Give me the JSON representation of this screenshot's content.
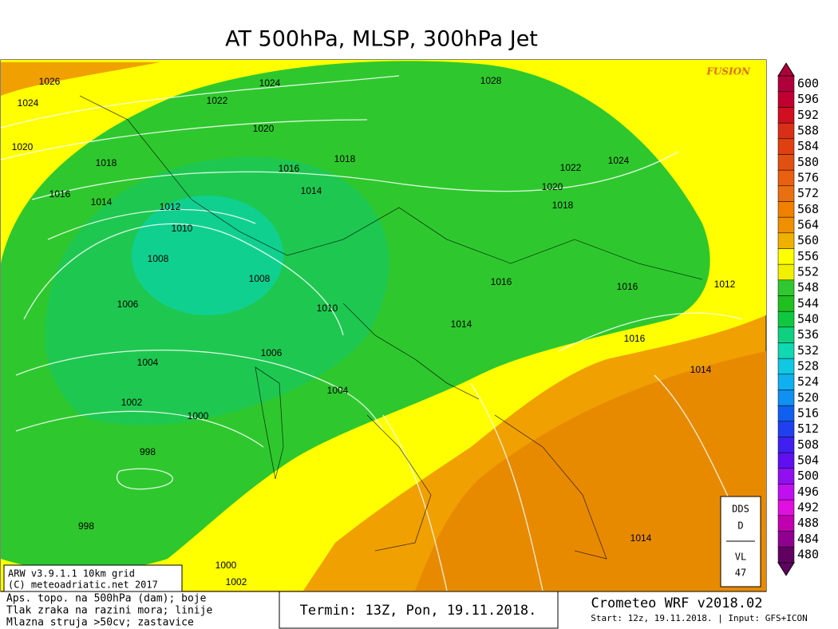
{
  "title": "AT 500hPa, MLSP, 300hPa Jet",
  "brand": "FUSION",
  "colorbar": {
    "levels": [
      600,
      596,
      592,
      588,
      584,
      580,
      576,
      572,
      568,
      564,
      560,
      556,
      552,
      548,
      544,
      540,
      536,
      532,
      528,
      524,
      520,
      516,
      512,
      508,
      504,
      500,
      496,
      492,
      488,
      484,
      480
    ],
    "colors": [
      "#b0003c",
      "#c00030",
      "#d01020",
      "#d83018",
      "#e04010",
      "#e05010",
      "#e86010",
      "#e87010",
      "#f08000",
      "#f09000",
      "#f0b000",
      "#ffff00",
      "#f0f000",
      "#30c830",
      "#20c020",
      "#10c840",
      "#10d080",
      "#10d8b0",
      "#10c8e0",
      "#10b0f0",
      "#1090f0",
      "#1060f0",
      "#2040f0",
      "#4020f0",
      "#6010f0",
      "#9010f0",
      "#c010f0",
      "#e010e0",
      "#c000b0",
      "#900090",
      "#600060"
    ]
  },
  "isobars": [
    "1026",
    "1024",
    "1020",
    "1016",
    "1018",
    "1014",
    "1012",
    "1010",
    "1008",
    "1006",
    "1004",
    "1002",
    "1000",
    "998",
    "998",
    "1000",
    "1002",
    "1022",
    "1024",
    "1020",
    "1016",
    "1018",
    "1014",
    "1008",
    "1010",
    "1006",
    "1004",
    "1028",
    "1022",
    "1024",
    "1020",
    "1018",
    "1016",
    "1016",
    "1014",
    "1016",
    "1012",
    "1014",
    "1014"
  ],
  "model_box": [
    "ARW v3.9.1.1 10km grid",
    "(C) meteoadriatic.net 2017"
  ],
  "station_box": {
    "top": [
      "DDS",
      "D"
    ],
    "bottom": [
      "VL",
      "47"
    ]
  },
  "legend_text": [
    "Aps. topo. na 500hPa (dam); boje",
    "Tlak zraka na razini mora; linije",
    "Mlazna struja >50cv; zastavice"
  ],
  "termin": "Termin: 13Z, Pon, 19.11.2018.",
  "model": "Crometeo WRF v2018.02",
  "start": "Start: 12z, 19.11.2018. | Input: GFS+ICON"
}
